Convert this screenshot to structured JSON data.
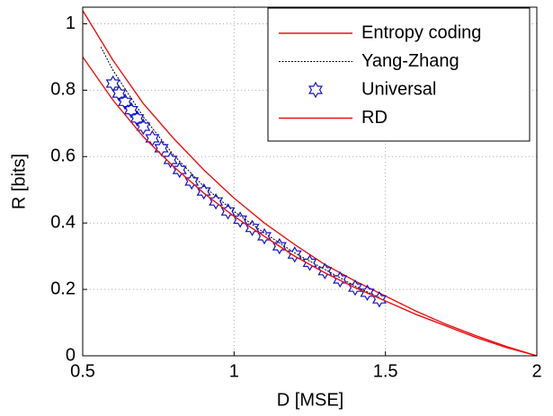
{
  "chart_data": {
    "type": "line",
    "xlabel": "D [MSE]",
    "ylabel": "R [bits]",
    "xlim": [
      0.5,
      2
    ],
    "xticks": [
      0.5,
      1,
      1.5,
      2
    ],
    "ylim": [
      0,
      1.05
    ],
    "yticks": [
      0,
      0.2,
      0.4,
      0.6,
      0.8,
      1
    ],
    "grid": true,
    "legend": "northeast",
    "series": [
      {
        "name": "Entropy coding",
        "color": "#ee1111",
        "linestyle": "solid",
        "marker": "none",
        "x": [
          0.5,
          0.6,
          0.7,
          0.8,
          0.9,
          1.0,
          1.1,
          1.2,
          1.3,
          1.4,
          1.5,
          1.6,
          1.7,
          1.8,
          1.9,
          2.0
        ],
        "values": [
          1.04,
          0.89,
          0.76,
          0.655,
          0.56,
          0.475,
          0.4,
          0.335,
          0.275,
          0.225,
          0.18,
          0.135,
          0.095,
          0.06,
          0.028,
          0
        ]
      },
      {
        "name": "Yang-Zhang",
        "color": "#000000",
        "linestyle": "dashed",
        "marker": "none",
        "x": [
          0.56,
          0.6,
          0.7,
          0.8,
          0.9,
          1.0,
          1.1,
          1.2,
          1.3,
          1.4,
          1.48
        ],
        "values": [
          0.93,
          0.86,
          0.72,
          0.605,
          0.51,
          0.435,
          0.37,
          0.31,
          0.26,
          0.21,
          0.175
        ]
      },
      {
        "name": "Universal",
        "color": "#1111cc",
        "linestyle": "none",
        "marker": "hexagram",
        "x": [
          0.6,
          0.62,
          0.64,
          0.66,
          0.68,
          0.7,
          0.73,
          0.76,
          0.79,
          0.82,
          0.86,
          0.9,
          0.94,
          0.98,
          1.02,
          1.06,
          1.1,
          1.15,
          1.2,
          1.25,
          1.3,
          1.35,
          1.4,
          1.44,
          1.48
        ],
        "values": [
          0.82,
          0.79,
          0.765,
          0.74,
          0.715,
          0.69,
          0.655,
          0.625,
          0.59,
          0.56,
          0.525,
          0.495,
          0.465,
          0.435,
          0.41,
          0.385,
          0.36,
          0.33,
          0.305,
          0.28,
          0.255,
          0.23,
          0.205,
          0.19,
          0.17
        ]
      },
      {
        "name": "RD",
        "color": "#ee1111",
        "linestyle": "solid",
        "marker": "none",
        "x": [
          0.5,
          0.6,
          0.7,
          0.8,
          0.9,
          1.0,
          1.1,
          1.2,
          1.3,
          1.4,
          1.5,
          1.6,
          1.7,
          1.8,
          1.9,
          2.0
        ],
        "values": [
          0.9,
          0.77,
          0.66,
          0.57,
          0.49,
          0.42,
          0.36,
          0.3,
          0.25,
          0.205,
          0.165,
          0.125,
          0.09,
          0.055,
          0.025,
          0
        ]
      }
    ]
  }
}
